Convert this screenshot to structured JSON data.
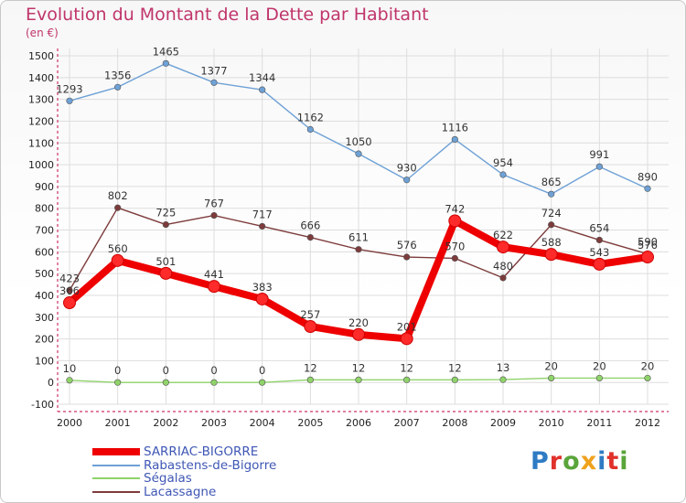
{
  "title": "Evolution du Montant de la Dette par Habitant",
  "unit": "(en €)",
  "logo": {
    "text": "Proxiti",
    "letter_colors": [
      "#2e7bc4",
      "#e0312b",
      "#5aa53a",
      "#f0a21d",
      "#2e7bc4",
      "#e0312b",
      "#5aa53a"
    ]
  },
  "chart_data": {
    "type": "line",
    "title": "Evolution du Montant de la Dette par Habitant",
    "ylabel": "(en €)",
    "xlabel": "",
    "categories": [
      "2000",
      "2001",
      "2002",
      "2003",
      "2004",
      "2005",
      "2006",
      "2007",
      "2008",
      "2009",
      "2010",
      "2011",
      "2012"
    ],
    "ylim": [
      -100,
      1500
    ],
    "yticks": [
      -100,
      0,
      100,
      200,
      300,
      400,
      500,
      600,
      700,
      800,
      900,
      1000,
      1100,
      1200,
      1300,
      1400,
      1500
    ],
    "grid": true,
    "legend_position": "bottom-left",
    "series": [
      {
        "name": "SARRIAC-BIGORRE",
        "color": "#ee0000",
        "values": [
          366,
          560,
          501,
          441,
          383,
          257,
          220,
          201,
          742,
          622,
          588,
          543,
          576
        ]
      },
      {
        "name": "Rabastens-de-Bigorre",
        "color": "#6ea1d6",
        "values": [
          1293,
          1356,
          1465,
          1377,
          1344,
          1162,
          1050,
          930,
          1116,
          954,
          865,
          991,
          890
        ]
      },
      {
        "name": "Ségalas",
        "color": "#8fd36a",
        "values": [
          10,
          0,
          0,
          0,
          0,
          12,
          12,
          12,
          12,
          13,
          20,
          20,
          20
        ]
      },
      {
        "name": "Lacassagne",
        "color": "#7d3b3b",
        "values": [
          423,
          802,
          725,
          767,
          717,
          666,
          611,
          576,
          570,
          480,
          724,
          654,
          590
        ]
      }
    ]
  }
}
